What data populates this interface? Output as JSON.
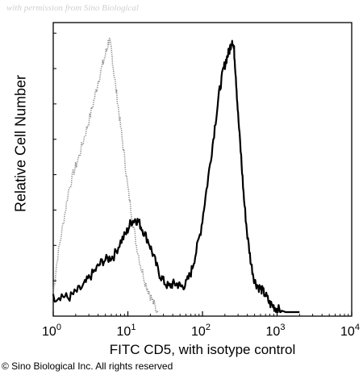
{
  "watermark": "with permission from Sino Biological",
  "credit": "© Sino Biological Inc. All rights reserved",
  "chart_data": {
    "type": "line",
    "xlabel": "FITC CD5, with isotype control",
    "ylabel": "Relative Cell Number",
    "xscale": "log",
    "xlim": [
      1,
      10000
    ],
    "ylim": [
      0,
      1
    ],
    "xticks": [
      {
        "value": 1,
        "base": "10",
        "exp": "0"
      },
      {
        "value": 10,
        "base": "10",
        "exp": "1"
      },
      {
        "value": 100,
        "base": "10",
        "exp": "2"
      },
      {
        "value": 1000,
        "base": "10",
        "exp": "3"
      },
      {
        "value": 10000,
        "base": "10",
        "exp": "4"
      }
    ],
    "grid": false,
    "legend": "none",
    "series": [
      {
        "style": "dotted",
        "color": "#8a8a8a",
        "x": [
          1.0,
          1.15,
          1.35,
          1.6,
          1.9,
          2.2,
          2.6,
          3.0,
          3.5,
          4.0,
          4.6,
          5.2,
          5.6,
          6.0,
          6.5,
          7.2,
          8.0,
          9.0,
          10.0,
          11.5,
          13.0,
          15.0,
          17.5,
          20.0,
          23.0,
          25.0
        ],
        "y": [
          0.07,
          0.2,
          0.31,
          0.43,
          0.5,
          0.55,
          0.62,
          0.68,
          0.75,
          0.82,
          0.88,
          0.93,
          0.97,
          0.93,
          0.85,
          0.76,
          0.66,
          0.55,
          0.44,
          0.33,
          0.24,
          0.16,
          0.1,
          0.06,
          0.02,
          0.0
        ]
      },
      {
        "style": "solid",
        "color": "#000000",
        "x": [
          1.0,
          1.3,
          1.6,
          2.0,
          2.5,
          3.0,
          3.7,
          4.5,
          5.5,
          6.5,
          8.0,
          9.5,
          11.0,
          12.5,
          14.0,
          16.0,
          19.0,
          22.0,
          26.0,
          30.0,
          35.0,
          40.0,
          46.0,
          52.0,
          60.0,
          70.0,
          80.0,
          95.0,
          110.0,
          130.0,
          150.0,
          170.0,
          190.0,
          210.0,
          230.0,
          250.0,
          265.0,
          280.0,
          300.0,
          330.0,
          360.0,
          400.0,
          450.0,
          500.0,
          560.0,
          620.0,
          700.0,
          800.0,
          900.0,
          1000.0,
          1150.0,
          1300.0,
          1500.0,
          1800.0,
          2000.0
        ],
        "y": [
          0.05,
          0.06,
          0.05,
          0.07,
          0.09,
          0.12,
          0.15,
          0.18,
          0.19,
          0.2,
          0.25,
          0.28,
          0.32,
          0.33,
          0.32,
          0.29,
          0.25,
          0.2,
          0.14,
          0.11,
          0.09,
          0.1,
          0.1,
          0.09,
          0.1,
          0.14,
          0.2,
          0.29,
          0.41,
          0.55,
          0.68,
          0.79,
          0.86,
          0.9,
          0.93,
          0.97,
          0.93,
          0.84,
          0.7,
          0.55,
          0.4,
          0.27,
          0.17,
          0.11,
          0.09,
          0.08,
          0.06,
          0.03,
          0.02,
          0.01,
          0.005,
          0.0,
          0.0,
          0.0,
          0.0
        ]
      }
    ]
  }
}
